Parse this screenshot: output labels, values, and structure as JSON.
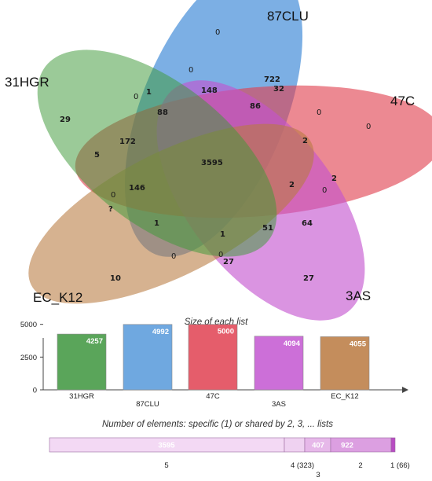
{
  "chart_data": [
    {
      "type": "venn",
      "sets": [
        {
          "name": "87CLU",
          "color": "#4a90d9"
        },
        {
          "name": "47C",
          "color": "#e0404f"
        },
        {
          "name": "3AS",
          "color": "#c452cf"
        },
        {
          "name": "EC_K12",
          "color": "#b87a3f"
        },
        {
          "name": "31HGR",
          "color": "#3f9a3a"
        }
      ],
      "region_values": [
        "0",
        "0",
        "722",
        "32",
        "148",
        "86",
        "1",
        "0",
        "88",
        "0",
        "0",
        "29",
        "172",
        "3595",
        "2",
        "5",
        "2",
        "2",
        "0",
        "146",
        "0",
        "?",
        "64",
        "1",
        "51",
        "1",
        "0",
        "0",
        "27",
        "10",
        "27"
      ]
    },
    {
      "type": "bar",
      "title": "Size of each list",
      "categories": [
        "31HGR",
        "87CLU",
        "47C",
        "3AS",
        "EC_K12"
      ],
      "values": [
        4257,
        4992,
        5000,
        4094,
        4055
      ],
      "colors": [
        "#5aa55a",
        "#6fa8e0",
        "#e55d6b",
        "#cc6fd8",
        "#c48d5c"
      ],
      "y_ticks": [
        "0",
        "2500",
        "5000"
      ],
      "ylim": [
        0,
        6000
      ]
    },
    {
      "type": "bar",
      "title": "Number of elements: specific (1) or shared by 2, 3, ... lists",
      "segments": [
        {
          "label": "5",
          "value": 3595,
          "text": "3595"
        },
        {
          "label": "4",
          "value": 323,
          "text": "4 (323)"
        },
        {
          "label": "3",
          "value": 407,
          "text": "407"
        },
        {
          "label": "2",
          "value": 922,
          "text": "922"
        },
        {
          "label": "1",
          "value": 66,
          "text": "1 (66)"
        }
      ]
    }
  ]
}
